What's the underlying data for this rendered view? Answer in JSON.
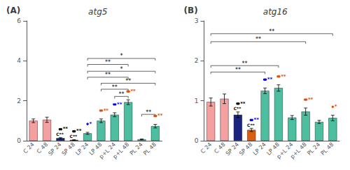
{
  "chart_data": [
    {
      "type": "bar",
      "title": "atg5",
      "panel_label": "(A)",
      "categories": [
        "C 24",
        "C 48",
        "SP 24",
        "SP 48",
        "LP 24",
        "LP 48",
        "p+L 24",
        "p+L 48",
        "PL 24",
        "PL 48"
      ],
      "values": [
        1.0,
        1.05,
        0.13,
        0.04,
        0.37,
        1.0,
        1.3,
        1.93,
        0.07,
        0.73
      ],
      "errors": [
        0.09,
        0.13,
        0.03,
        0.015,
        0.05,
        0.09,
        0.1,
        0.12,
        0.02,
        0.09
      ],
      "colors": [
        "#F4A0A0",
        "#F4A0A0",
        "#1A237E",
        "#1A237E",
        "#4DBFA0",
        "#4DBFA0",
        "#4DBFA0",
        "#4DBFA0",
        "#4DBFA0",
        "#4DBFA0"
      ],
      "ylim": [
        0,
        6
      ],
      "yticks": [
        0,
        2,
        4,
        6
      ],
      "grid": false,
      "significance": [
        {
          "from": "LP 24",
          "to": "p+L 48",
          "y": 3.82,
          "text": "**"
        },
        {
          "from": "LP 24",
          "to": "PL 48",
          "y": 4.12,
          "text": "*"
        },
        {
          "from": "LP 24",
          "to": "p+L 48",
          "y": 3.18,
          "text": "**"
        },
        {
          "from": "LP 24",
          "to": "PL 48",
          "y": 3.48,
          "text": "*"
        },
        {
          "from": "LP 48",
          "to": "p+L 48",
          "y": 2.58,
          "text": "**"
        },
        {
          "from": "LP 48",
          "to": "PL 48",
          "y": 2.88,
          "text": "**"
        },
        {
          "from": "p+L 24",
          "to": "p+L 48",
          "y": 2.22,
          "text": "**"
        },
        {
          "from": "PL 24",
          "to": "PL 48",
          "y": 1.32,
          "text": "**"
        }
      ],
      "dot_annotations": [
        {
          "category": "SP 24",
          "dot_colors": [
            "black",
            "black"
          ],
          "text": "**",
          "color": "black"
        },
        {
          "category": "SP 48",
          "dot_colors": [
            "black",
            "black"
          ],
          "text": "**",
          "color": "black"
        },
        {
          "category": "LP 24",
          "dot_colors": [
            "blue"
          ],
          "text": "*",
          "color": "blue"
        },
        {
          "category": "LP 48",
          "dot_colors": [
            "#E05010",
            "#E05010"
          ],
          "text": "**",
          "color": "#E05010"
        },
        {
          "category": "p+L 24",
          "dot_colors": [
            "blue",
            "blue"
          ],
          "text": "**",
          "color": "blue"
        },
        {
          "category": "p+L 48",
          "dot_colors": [
            "#E05010",
            "#E05010"
          ],
          "text": "**",
          "color": "#E05010"
        },
        {
          "category": "PL 48",
          "dot_colors": [
            "#E05010",
            "#E05010"
          ],
          "text": "**",
          "color": "#E05010"
        }
      ],
      "text_annotations": [
        {
          "category": "SP 24",
          "text": "C**"
        },
        {
          "category": "SP 48",
          "text": "C**"
        }
      ]
    },
    {
      "type": "bar",
      "title": "atg16",
      "panel_label": "(B)",
      "categories": [
        "C 24",
        "C 48",
        "SP 24",
        "SP 48",
        "LP 24",
        "LP 48",
        "p+L 24",
        "p+L 48",
        "PL 24",
        "PL 48"
      ],
      "values": [
        0.97,
        1.05,
        0.65,
        0.27,
        1.25,
        1.32,
        0.58,
        0.73,
        0.47,
        0.57
      ],
      "errors": [
        0.1,
        0.12,
        0.07,
        0.04,
        0.07,
        0.08,
        0.05,
        0.09,
        0.04,
        0.07
      ],
      "colors": [
        "#F4A0A0",
        "#F4A0A0",
        "#1A237E",
        "#D95E10",
        "#4DBFA0",
        "#4DBFA0",
        "#4DBFA0",
        "#4DBFA0",
        "#4DBFA0",
        "#4DBFA0"
      ],
      "ylim": [
        0,
        3
      ],
      "yticks": [
        0,
        1,
        2,
        3
      ],
      "grid": false,
      "significance": [
        {
          "from": "C 24",
          "to": "LP 24",
          "y": 1.72,
          "text": "**"
        },
        {
          "from": "C 24",
          "to": "LP 48",
          "y": 1.88,
          "text": "**"
        },
        {
          "from": "C 24",
          "to": "p+L 48",
          "y": 2.48,
          "text": "**"
        },
        {
          "from": "C 24",
          "to": "PL 48",
          "y": 2.68,
          "text": "**"
        }
      ],
      "dot_annotations": [
        {
          "category": "SP 24",
          "dot_colors": [
            "black",
            "black"
          ],
          "text": "**",
          "color": "black"
        },
        {
          "category": "SP 48",
          "dot_colors": [
            "blue",
            "blue"
          ],
          "text": "**",
          "color": "blue"
        },
        {
          "category": "LP 24",
          "dot_colors": [
            "blue",
            "blue"
          ],
          "text": "**",
          "color": "blue"
        },
        {
          "category": "LP 48",
          "dot_colors": [
            "#E05010",
            "#E05010"
          ],
          "text": "**",
          "color": "#E05010"
        },
        {
          "category": "p+L 48",
          "dot_colors": [
            "#E05010",
            "#E05010"
          ],
          "text": "**",
          "color": "#E05010"
        },
        {
          "category": "PL 48",
          "dot_colors": [
            "#E05010"
          ],
          "text": "*",
          "color": "#E05010"
        }
      ],
      "text_annotations": [
        {
          "category": "SP 24",
          "text": "C**"
        },
        {
          "category": "SP 48",
          "text": "C**"
        }
      ]
    }
  ]
}
